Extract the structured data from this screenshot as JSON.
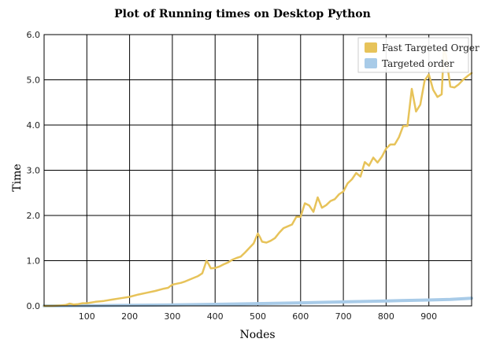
{
  "chart_data": {
    "type": "line",
    "title": "Plot of Running times on Desktop Python",
    "xlabel": "Nodes",
    "ylabel": "Time",
    "xlim": [
      0,
      1000
    ],
    "ylim": [
      0,
      6
    ],
    "x_ticks": [
      100,
      200,
      300,
      400,
      500,
      600,
      700,
      800,
      900
    ],
    "x_tick_labels": [
      "100",
      "200",
      "300",
      "400",
      "500",
      "600",
      "700",
      "800",
      "900"
    ],
    "y_ticks": [
      0,
      1,
      2,
      3,
      4,
      5,
      6
    ],
    "y_tick_labels": [
      "0.0",
      "1.0",
      "2.0",
      "3.0",
      "4.0",
      "5.0",
      "6.0"
    ],
    "grid": true,
    "legend_position": "top-right",
    "series": [
      {
        "name": "Fast Targeted Orger",
        "color": "#e7c35a",
        "x": [
          0,
          20,
          40,
          50,
          60,
          70,
          80,
          90,
          100,
          120,
          140,
          160,
          180,
          200,
          220,
          240,
          260,
          280,
          290,
          300,
          310,
          320,
          330,
          340,
          350,
          360,
          370,
          380,
          385,
          390,
          400,
          410,
          420,
          430,
          440,
          450,
          460,
          470,
          480,
          490,
          500,
          505,
          510,
          520,
          530,
          540,
          550,
          560,
          570,
          580,
          590,
          600,
          610,
          620,
          630,
          640,
          650,
          660,
          670,
          680,
          690,
          700,
          710,
          720,
          730,
          740,
          750,
          760,
          770,
          780,
          790,
          800,
          810,
          820,
          830,
          840,
          850,
          860,
          870,
          880,
          890,
          900,
          910,
          920,
          930,
          935,
          940,
          950,
          960,
          970,
          980,
          990,
          1000
        ],
        "y": [
          0.0,
          0.0,
          0.01,
          0.02,
          0.05,
          0.03,
          0.04,
          0.06,
          0.06,
          0.09,
          0.11,
          0.14,
          0.17,
          0.2,
          0.25,
          0.29,
          0.33,
          0.38,
          0.4,
          0.47,
          0.49,
          0.51,
          0.54,
          0.58,
          0.62,
          0.66,
          0.72,
          1.0,
          0.92,
          0.83,
          0.84,
          0.87,
          0.92,
          0.96,
          1.02,
          1.06,
          1.09,
          1.18,
          1.28,
          1.38,
          1.6,
          1.52,
          1.42,
          1.4,
          1.44,
          1.5,
          1.62,
          1.72,
          1.76,
          1.8,
          1.97,
          1.97,
          2.27,
          2.22,
          2.08,
          2.4,
          2.17,
          2.23,
          2.32,
          2.36,
          2.47,
          2.53,
          2.71,
          2.8,
          2.94,
          2.86,
          3.18,
          3.1,
          3.28,
          3.17,
          3.3,
          3.48,
          3.57,
          3.57,
          3.73,
          3.98,
          3.98,
          4.8,
          4.3,
          4.45,
          4.98,
          5.12,
          4.78,
          4.62,
          4.68,
          5.68,
          5.55,
          4.85,
          4.83,
          4.9,
          5.0,
          5.08,
          5.15
        ]
      },
      {
        "name": "Targeted order",
        "color": "#a8cbe8",
        "x": [
          0,
          100,
          200,
          300,
          400,
          500,
          600,
          700,
          800,
          900,
          950,
          1000
        ],
        "y": [
          0.0,
          0.005,
          0.012,
          0.022,
          0.035,
          0.05,
          0.068,
          0.088,
          0.11,
          0.13,
          0.145,
          0.17
        ]
      }
    ]
  }
}
